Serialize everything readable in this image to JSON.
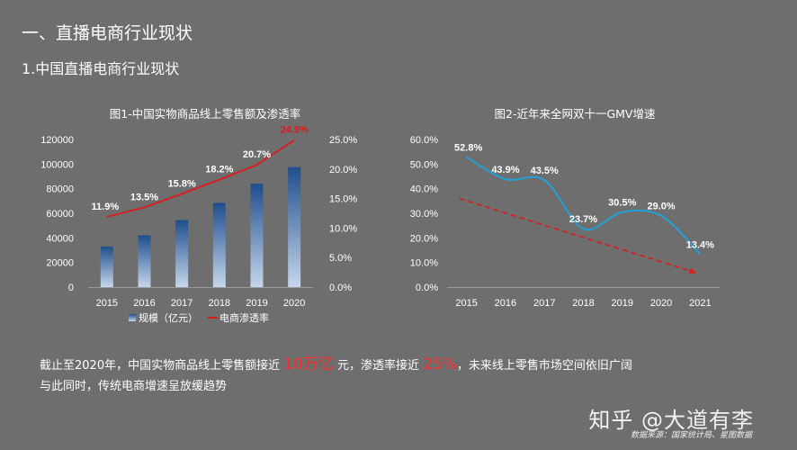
{
  "header": {
    "title": "一、直播电商行业现状",
    "subtitle": "1.中国直播电商行业现状"
  },
  "chart_data": [
    {
      "type": "bar",
      "title": "图1-中国实物商品线上零售额及渗透率",
      "categories": [
        "2015",
        "2016",
        "2017",
        "2018",
        "2019",
        "2020"
      ],
      "series": [
        {
          "name": "规模（亿元）",
          "type": "bar",
          "axis": "left",
          "values": [
            33000,
            42000,
            54500,
            68500,
            84000,
            97500
          ]
        },
        {
          "name": "电商渗透率",
          "type": "line",
          "axis": "right",
          "values": [
            11.9,
            13.5,
            15.8,
            18.2,
            20.7,
            24.9
          ],
          "labels": [
            "11.9%",
            "13.5%",
            "15.8%",
            "18.2%",
            "20.7%",
            "24.9%"
          ]
        }
      ],
      "ylim_left": [
        0,
        120000
      ],
      "yticks_left": [
        "0",
        "20000",
        "40000",
        "60000",
        "80000",
        "100000",
        "120000"
      ],
      "ylim_right": [
        0,
        25
      ],
      "yticks_right": [
        "0.0%",
        "5.0%",
        "10.0%",
        "15.0%",
        "20.0%",
        "25.0%"
      ],
      "legend": "bottom",
      "colors": {
        "bar_top": "#1f4e8c",
        "bar_bottom": "#c5d6ec",
        "line": "#e0191b"
      }
    },
    {
      "type": "line",
      "title": "图2-近年来全网双十一GMV增速",
      "categories": [
        "2015",
        "2016",
        "2017",
        "2018",
        "2019",
        "2020",
        "2021"
      ],
      "series": [
        {
          "values": [
            52.8,
            43.9,
            43.5,
            23.7,
            30.5,
            29.0,
            13.4
          ],
          "labels": [
            "52.8%",
            "43.9%",
            "43.5%",
            "23.7%",
            "30.5%",
            "29.0%",
            "13.4%"
          ]
        }
      ],
      "trend_arrow": {
        "from": {
          "x": "2015",
          "y": 36
        },
        "to": {
          "x": "2021",
          "y": 6
        }
      },
      "ylim": [
        0,
        60
      ],
      "yticks": [
        "0.0%",
        "10.0%",
        "20.0%",
        "30.0%",
        "40.0%",
        "50.0%",
        "60.0%"
      ],
      "colors": {
        "line": "#22a0d8",
        "trend": "#e0191b"
      }
    }
  ],
  "summary": {
    "line1": {
      "part1": "截止至2020年，中国实物商品线上零售额接近 ",
      "highlight1": "10万亿",
      "part2": " 元，渗透率接近 ",
      "highlight2": "25%",
      "part3": "，未来线上零售市场空间依旧广阔"
    },
    "line2": "与此同时，传统电商增速呈放缓趋势"
  },
  "watermark": "知乎 @大道有李",
  "source": "数据来源：国家统计局、星图数据"
}
